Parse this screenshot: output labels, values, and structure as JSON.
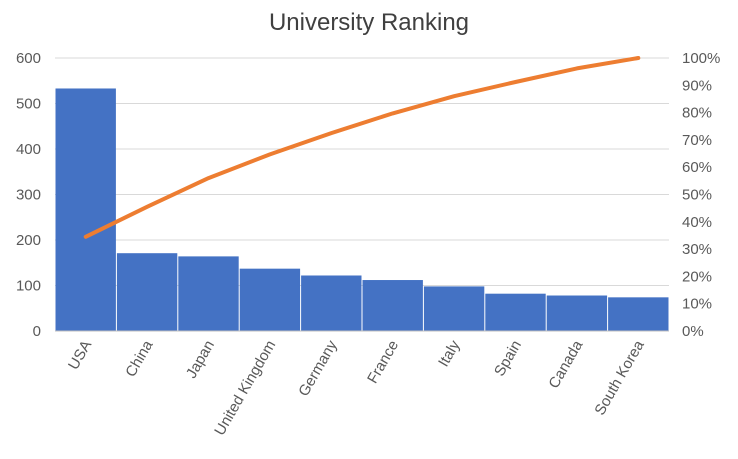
{
  "chart_data": {
    "type": "bar",
    "title": "University Ranking",
    "categories": [
      "USA",
      "China",
      "Japan",
      "United Kingdom",
      "Germany",
      "France",
      "Italy",
      "Spain",
      "Canada",
      "South Korea"
    ],
    "series": [
      {
        "values": [
          533,
          171,
          164,
          137,
          122,
          112,
          98,
          82,
          78,
          74
        ],
        "color": "#4472c4",
        "type": "bar",
        "axis": "left"
      },
      {
        "values": [
          34.5,
          45.5,
          56.0,
          64.7,
          72.5,
          79.7,
          86.0,
          91.2,
          96.2,
          100
        ],
        "color": "#ed7d31",
        "type": "line",
        "axis": "right"
      }
    ],
    "ylim": [
      0,
      600
    ],
    "yticks": [
      "0",
      "100",
      "200",
      "300",
      "400",
      "500",
      "600"
    ],
    "y2lim": [
      0,
      100
    ],
    "y2ticks": [
      "0%",
      "10%",
      "20%",
      "30%",
      "40%",
      "50%",
      "60%",
      "70%",
      "80%",
      "90%",
      "100%"
    ],
    "grid": true,
    "legend": "none"
  }
}
